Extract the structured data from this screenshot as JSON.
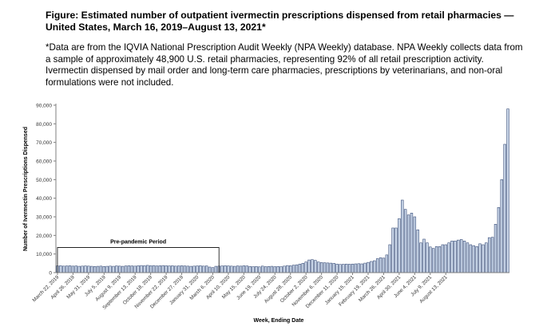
{
  "figure": {
    "title": "Figure: Estimated number of outpatient ivermectin prescriptions dispensed from retail pharmacies — United States, March 16, 2019–August 13, 2021*",
    "footnote": "*Data are from the IQVIA National Prescription Audit Weekly (NPA Weekly) database. NPA Weekly collects data from a sample of approximately 48,900 U.S. retail pharmacies, representing 92% of all retail prescription activity. Ivermectin dispensed by mail order and long-term care pharmacies, prescriptions by veterinarians, and non-oral formulations were not included."
  },
  "colors": {
    "bar_fill": "#c6d3e6",
    "bar_stroke": "#3b4f7a",
    "axis": "#7f7f7f"
  },
  "chart_data": {
    "type": "bar",
    "xlabel": "Week, Ending Date",
    "ylabel": "Number of Ivermectin Prescriptions Dispensed",
    "ylim": [
      0,
      90000
    ],
    "yticks": [
      0,
      10000,
      20000,
      30000,
      40000,
      50000,
      60000,
      70000,
      80000,
      90000
    ],
    "ytick_labels": [
      "0",
      "10,000",
      "20,000",
      "30,000",
      "40,000",
      "50,000",
      "60,000",
      "70,000",
      "80,000",
      "90,000"
    ],
    "xtick_labels": [
      "March 22, 2019",
      "April 26, 2019",
      "May 31, 2019",
      "July 5, 2019",
      "August 9, 2019",
      "September 13, 2019",
      "October 18, 2019",
      "November 22, 2019",
      "December 27, 2019",
      "January 31, 2020",
      "March 6, 2020",
      "April 10, 2020",
      "May 15, 2020",
      "June 19, 2020",
      "July 24, 2020",
      "August 28, 2020",
      "October 2, 2020",
      "November 6, 2020",
      "December 11, 2020",
      "January 15, 2021",
      "February 19, 2021",
      "March 26, 2021",
      "April 30, 2021",
      "June 4, 2021",
      "July 9, 2021",
      "August 13, 2021"
    ],
    "grid": false,
    "annotations": [
      {
        "text": "Pre-pandemic Period",
        "start_week": 1,
        "end_week": 52,
        "level": 13500
      }
    ],
    "values": [
      3600,
      3700,
      3500,
      3600,
      3700,
      3500,
      3600,
      3400,
      3500,
      3600,
      3500,
      3400,
      3300,
      3400,
      3500,
      3300,
      3400,
      3500,
      3400,
      3600,
      3500,
      3400,
      3600,
      3700,
      3600,
      3500,
      3700,
      3800,
      3700,
      3900,
      3700,
      3800,
      3600,
      3700,
      3800,
      3700,
      3600,
      3700,
      3500,
      3600,
      3700,
      3600,
      3500,
      3400,
      3500,
      3600,
      3700,
      3500,
      3600,
      3000,
      2700,
      3400,
      3500,
      3600,
      3700,
      3600,
      3500,
      3400,
      3600,
      3500,
      3700,
      3600,
      3300,
      3200,
      3300,
      3100,
      3500,
      3200,
      3300,
      3400,
      3200,
      3300,
      3200,
      3500,
      3800,
      3700,
      4000,
      4200,
      4600,
      5000,
      5700,
      6800,
      7000,
      6600,
      5700,
      5400,
      5300,
      5200,
      5100,
      5000,
      4600,
      4400,
      4500,
      4600,
      4500,
      4600,
      4700,
      4800,
      4700,
      5100,
      5500,
      6000,
      6400,
      7500,
      8000,
      7800,
      9500,
      15000,
      24000,
      24000,
      29000,
      39000,
      34000,
      31000,
      32000,
      30000,
      23000,
      16000,
      18000,
      16000,
      13800,
      13000,
      14000,
      14000,
      15000,
      15000,
      16000,
      17000,
      17000,
      17500,
      17800,
      17000,
      16000,
      15000,
      14500,
      14000,
      15500,
      15000,
      16000,
      18800,
      19000,
      26000,
      35000,
      50000,
      69000,
      88000
    ]
  }
}
